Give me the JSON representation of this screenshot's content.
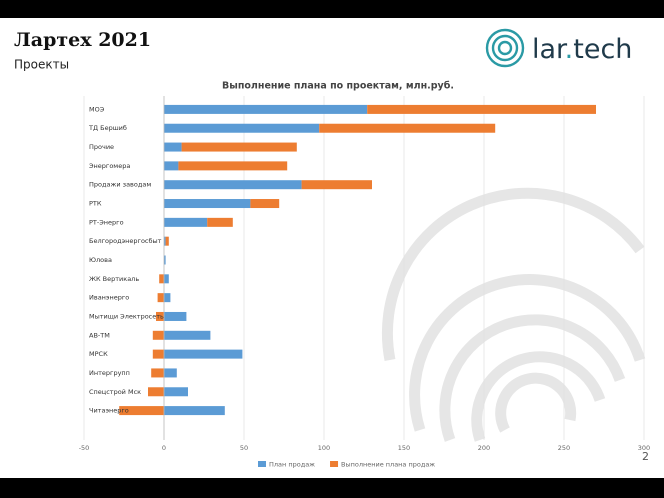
{
  "header": {
    "title": "Лартех 2021",
    "subtitle": "Проекты"
  },
  "logo": {
    "parts": [
      "lar",
      ".",
      "tech"
    ]
  },
  "page_number": "2",
  "chart_data": {
    "type": "bar",
    "orientation": "horizontal",
    "stacked": true,
    "title": "Выполнение плана по проектам, млн.руб.",
    "categories": [
      "МОЭ",
      "ТД Бершиб",
      "Прочие",
      "Энергомера",
      "Продажи заводам",
      "РТК",
      "РТ-Энерго",
      "Белгородэнергосбыт",
      "Юлова",
      "ЖК Вертикаль",
      "Иванэнерго",
      "Мытищи Электросеть",
      "АВ-ТМ",
      "МРСК",
      "Интергрупп",
      "Спецстрой Мск",
      "Читаэнерго"
    ],
    "series": [
      {
        "name": "План продаж",
        "color": "#5b9bd5",
        "values": [
          127,
          97,
          11,
          9,
          86,
          54,
          27,
          1,
          1,
          3,
          4,
          14,
          29,
          49,
          8,
          15,
          38
        ]
      },
      {
        "name": "Выполнение плана продаж",
        "color": "#ed7d31",
        "values": [
          143,
          110,
          72,
          68,
          44,
          18,
          16,
          2,
          0,
          -3,
          -4,
          -5,
          -7,
          -7,
          -8,
          -10,
          -28
        ]
      }
    ],
    "xlim": [
      -50,
      300
    ],
    "xticks": [
      -50,
      0,
      50,
      100,
      150,
      200,
      250,
      300
    ],
    "grid": true,
    "legend": "bottom"
  }
}
